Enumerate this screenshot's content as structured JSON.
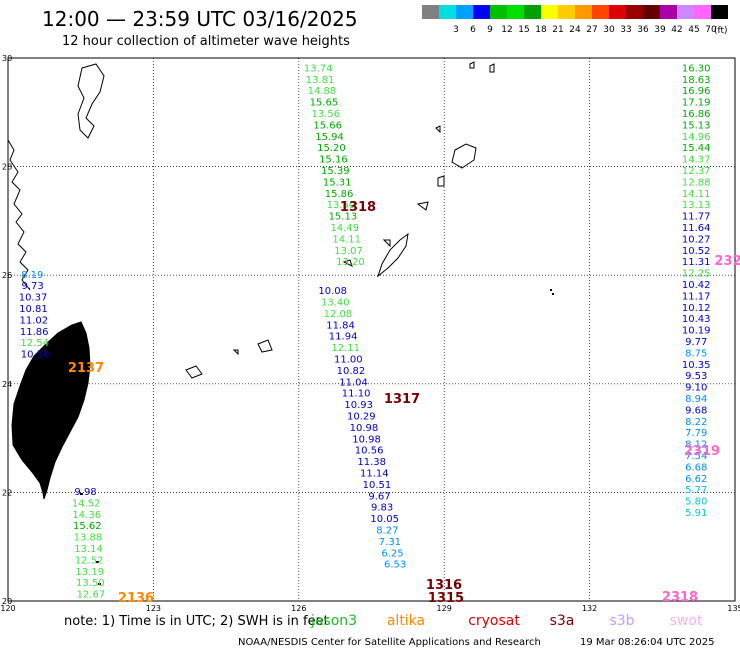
{
  "header": {
    "title": "12:00 — 23:59 UTC 03/16/2025",
    "subtitle": "12 hour collection of altimeter wave heights"
  },
  "legend": {
    "unit": "(ft)",
    "bins": [
      {
        "label": "",
        "color": "#808080"
      },
      {
        "label": "3",
        "color": "#00e0e0"
      },
      {
        "label": "6",
        "color": "#00a0ff"
      },
      {
        "label": "9",
        "color": "#0000ff"
      },
      {
        "label": "12",
        "color": "#00c000"
      },
      {
        "label": "15",
        "color": "#00e000"
      },
      {
        "label": "18",
        "color": "#00a000"
      },
      {
        "label": "21",
        "color": "#ffff00"
      },
      {
        "label": "24",
        "color": "#ffcc00"
      },
      {
        "label": "27",
        "color": "#ff9900"
      },
      {
        "label": "30",
        "color": "#ff4400"
      },
      {
        "label": "33",
        "color": "#dd0000"
      },
      {
        "label": "36",
        "color": "#990000"
      },
      {
        "label": "39",
        "color": "#660000"
      },
      {
        "label": "42",
        "color": "#aa00aa"
      },
      {
        "label": "45",
        "color": "#cc88ff"
      },
      {
        "label": "70",
        "color": "#ff66ff"
      },
      {
        "label": "",
        "color": "#000000"
      }
    ]
  },
  "map": {
    "lon_range": [
      120,
      135
    ],
    "lat_range": [
      20,
      30
    ],
    "lon_ticks": [
      "120",
      "123",
      "126",
      "129",
      "132",
      "135"
    ],
    "lat_ticks": [
      "30",
      "28",
      "26",
      "24",
      "22",
      "20"
    ],
    "grid": "dotted"
  },
  "tracks": [
    {
      "color_hex": "#22bb22",
      "lon": 126.4,
      "top_lat": 29.9,
      "values": [
        "13.74",
        "13.81",
        "14.88",
        "15.65",
        "13.56",
        "15.66",
        "15.94",
        "15.20",
        "15.16",
        "15.39",
        "15.31",
        "15.86",
        "13.50",
        "15.13",
        "14.49",
        "14.11",
        "13.07",
        "13.20"
      ]
    },
    {
      "color_hex": "#0000cc",
      "lon": 126.7,
      "top_lat": 25.8,
      "values": [
        "10.08",
        "13.40",
        "12.08",
        "11.84",
        "11.94",
        "12.11",
        "11.00",
        "10.82",
        "11.04",
        "11.10",
        "10.93",
        "10.29",
        "10.98",
        "10.98",
        "10.56",
        "11.38",
        "11.14",
        "10.51",
        "9.67",
        "9.83",
        "10.05",
        "8.27",
        "7.31",
        "6.25",
        "6.53"
      ]
    },
    {
      "color_hex": "#0000cc",
      "lon": 134.2,
      "top_lat": 29.9,
      "values": [
        "16.30",
        "18.63",
        "16.96",
        "17.19",
        "16.86",
        "15.13",
        "14.96",
        "15.44",
        "14.37",
        "12.37",
        "12.88",
        "14.11",
        "13.13",
        "11.77",
        "11.64",
        "10.27",
        "10.52",
        "11.31",
        "12.25",
        "10.42",
        "11.17",
        "10.12",
        "10.43",
        "10.19",
        "9.77",
        "8.75",
        "10.35",
        "9.53",
        "9.10",
        "8.94",
        "9.68",
        "8.22",
        "7.79",
        "8.12",
        "7.54",
        "6.68",
        "6.62",
        "5.77",
        "5.80",
        "5.91"
      ]
    },
    {
      "color_hex": "#0000cc",
      "lon": 120.5,
      "top_lat": 26.1,
      "values": [
        "8.19",
        "9.73",
        "10.37",
        "10.81",
        "11.02",
        "11.86",
        "12.54",
        "10.50"
      ]
    },
    {
      "color_hex": "#22bb22",
      "lon": 121.6,
      "top_lat": 22.1,
      "values": [
        "9.98",
        "14.52",
        "14.36",
        "15.62",
        "13.88",
        "13.14",
        "12.52",
        "13.19",
        "13.50",
        "12.67"
      ]
    }
  ],
  "pass_labels": [
    {
      "text": "1318",
      "color": "#770000"
    },
    {
      "text": "1317",
      "color": "#770000"
    },
    {
      "text": "1316",
      "color": "#770000"
    },
    {
      "text": "1315",
      "color": "#770000"
    },
    {
      "text": "2137",
      "color": "#ff8800"
    },
    {
      "text": "2136",
      "color": "#ff8800"
    },
    {
      "text": "232",
      "color": "#ff66cc"
    },
    {
      "text": "2319",
      "color": "#ff66cc"
    },
    {
      "text": "2318",
      "color": "#ff66cc"
    }
  ],
  "footer": {
    "note": "note: 1) Time is in UTC; 2) SWH is in feet",
    "satellites": [
      {
        "name": "jason3",
        "color": "#22bb22"
      },
      {
        "name": "altika",
        "color": "#ff8800"
      },
      {
        "name": "cryosat",
        "color": "#dd0000"
      },
      {
        "name": "s3a",
        "color": "#770000"
      },
      {
        "name": "s3b",
        "color": "#c0a0ff"
      },
      {
        "name": "swot",
        "color": "#ffb0f0"
      }
    ],
    "credit": "NOAA/NESDIS Center for Satellite Applications and Research",
    "timestamp": "19 Mar 08:26:04 UTC 2025"
  }
}
